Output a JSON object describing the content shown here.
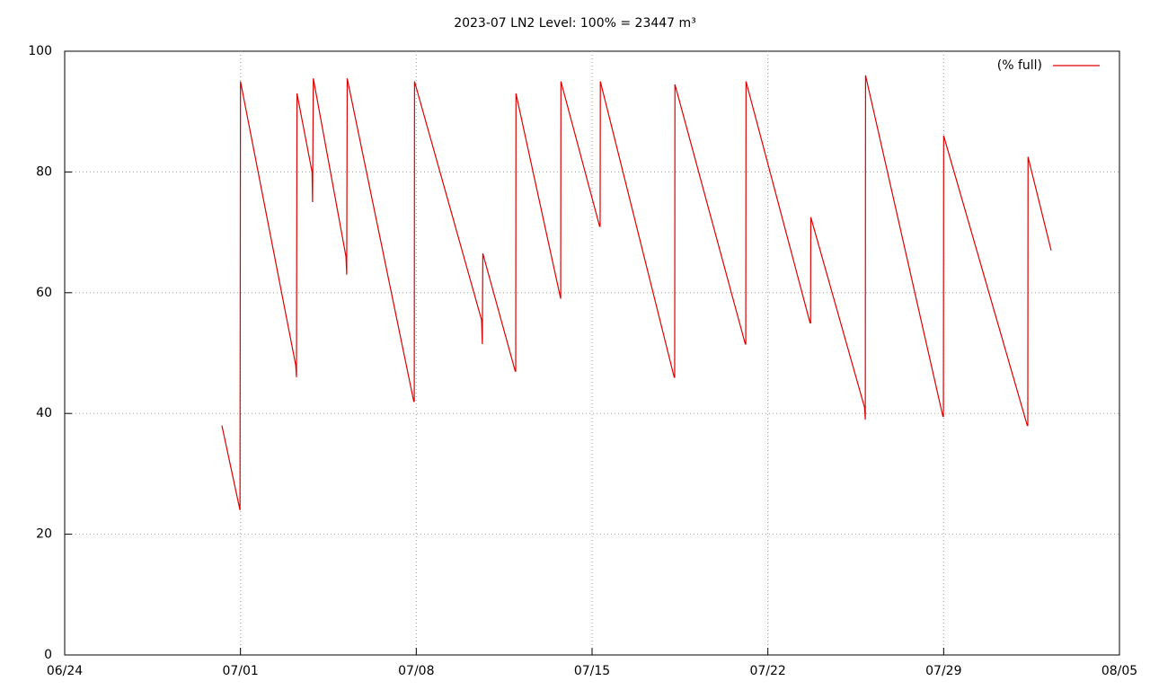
{
  "chart_data": {
    "type": "line",
    "title": "2023-07 LN2 Level: 100% = 23447 m³",
    "x": [
      6.26,
      6.98,
      7.0,
      9.2,
      9.23,
      9.25,
      9.85,
      9.87,
      9.9,
      11.2,
      11.23,
      11.25,
      13.9,
      13.92,
      13.93,
      16.6,
      16.63,
      16.65,
      17.94,
      17.96,
      17.97,
      19.75,
      19.76,
      21.3,
      21.32,
      21.33,
      24.27,
      24.29,
      24.3,
      27.1,
      27.12,
      27.13,
      29.68,
      29.7,
      29.71,
      31.85,
      31.88,
      31.89,
      34.97,
      34.99,
      35.0,
      38.33,
      38.35,
      38.36,
      39.28
    ],
    "series": [
      {
        "name": "(% full)",
        "color": "#dd0000",
        "values": [
          38,
          24,
          95,
          48,
          46,
          93,
          80,
          75,
          95.5,
          66,
          63,
          95.5,
          42,
          42,
          95,
          55.5,
          51.5,
          66.5,
          47,
          47,
          93,
          59,
          95,
          71,
          71,
          95,
          46,
          46,
          94.5,
          51.5,
          51.5,
          95,
          55,
          55,
          72.5,
          41,
          39,
          96,
          39.5,
          39.5,
          86,
          38,
          38,
          82.5,
          67
        ]
      }
    ],
    "xlim": [
      0,
      42
    ],
    "xticks": [
      {
        "value": 0,
        "label": "06/24"
      },
      {
        "value": 7,
        "label": "07/01"
      },
      {
        "value": 14,
        "label": "07/08"
      },
      {
        "value": 21,
        "label": "07/15"
      },
      {
        "value": 28,
        "label": "07/22"
      },
      {
        "value": 35,
        "label": "07/29"
      },
      {
        "value": 42,
        "label": "08/05"
      }
    ],
    "ylim": [
      0,
      100
    ],
    "yticks": [
      0,
      20,
      40,
      60,
      80,
      100
    ],
    "grid": true,
    "legend": "top-right"
  }
}
